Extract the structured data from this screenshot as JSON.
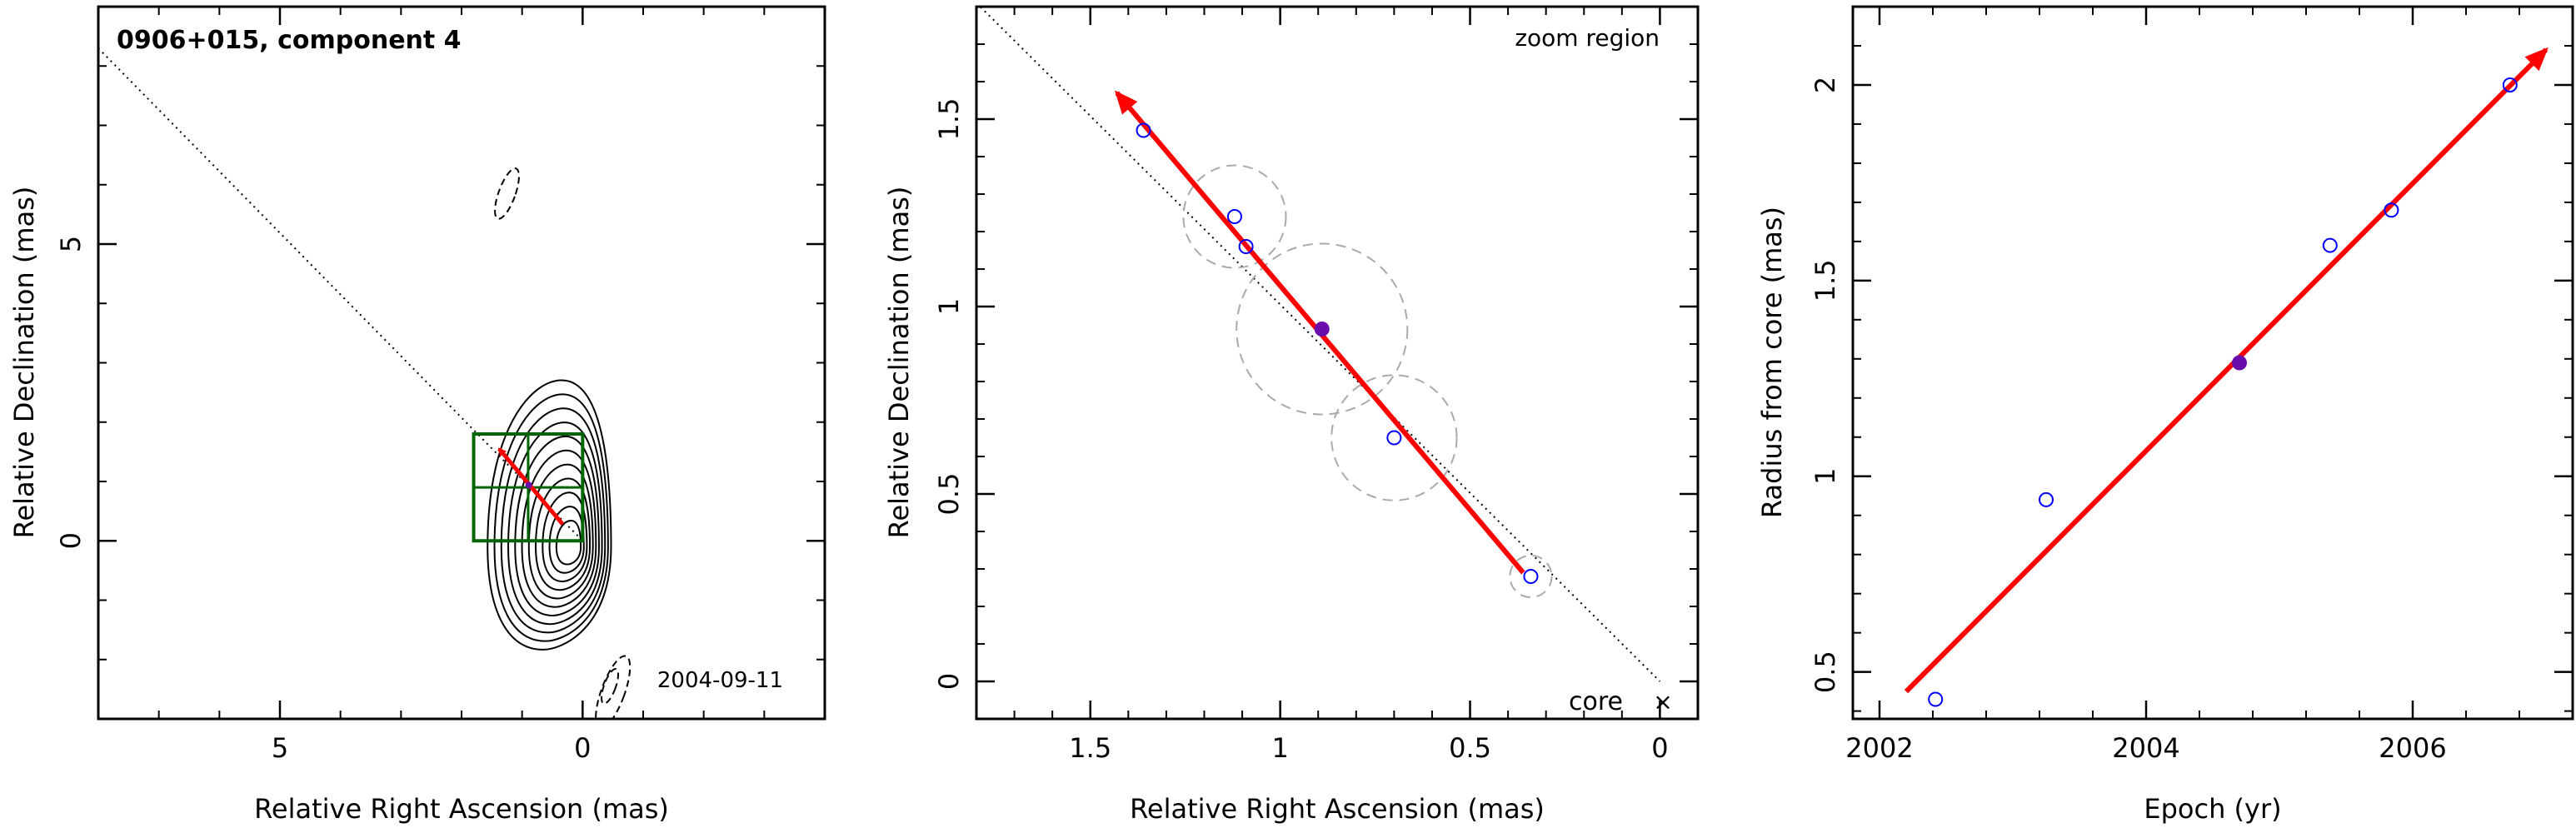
{
  "chart_data": [
    {
      "type": "scatter",
      "panel": "image",
      "title": "0906+015, component 4",
      "date_label": "2004-09-11",
      "xlabel": "Relative Right Ascension (mas)",
      "ylabel": "Relative Declination (mas)",
      "xlim": [
        8,
        -4
      ],
      "ylim": [
        -3,
        9
      ],
      "x_reversed": true,
      "xticks": [
        5,
        0
      ],
      "yticks": [
        0,
        5
      ],
      "xtick_labels": [
        "5",
        "0"
      ],
      "ytick_labels": [
        "0",
        "5"
      ],
      "grid": false,
      "jet_axis_line": {
        "from": [
          8,
          8.3
        ],
        "to": [
          0,
          0
        ]
      },
      "zoom_box": {
        "x": [
          0,
          1.8
        ],
        "y": [
          0,
          1.8
        ]
      },
      "motion_vector": {
        "from": [
          0.33,
          0.28
        ],
        "to": [
          1.38,
          1.55
        ]
      },
      "component_position": [
        0.89,
        0.94
      ],
      "colors": {
        "contours": "#000000",
        "zoom_box": "#006400",
        "vector": "#ff0000",
        "axis_line": "#000000"
      }
    },
    {
      "type": "scatter",
      "panel": "zoom",
      "corner_label": "zoom region",
      "core_label": "core",
      "core_marker": "×",
      "xlabel": "Relative Right Ascension (mas)",
      "ylabel": "Relative Declination (mas)",
      "xlim": [
        1.8,
        -0.1
      ],
      "ylim": [
        -0.1,
        1.8
      ],
      "x_reversed": true,
      "xticks": [
        1.5,
        1,
        0.5,
        0
      ],
      "yticks": [
        0,
        0.5,
        1,
        1.5
      ],
      "xtick_labels": [
        "1.5",
        "1",
        "0.5",
        "0"
      ],
      "ytick_labels": [
        "0",
        "0.5",
        "1",
        "1.5"
      ],
      "grid": false,
      "points": [
        {
          "x": 1.36,
          "y": 1.47,
          "filled": false,
          "size": 0
        },
        {
          "x": 1.12,
          "y": 1.24,
          "filled": false,
          "size": 0.135
        },
        {
          "x": 1.09,
          "y": 1.16,
          "filled": false,
          "size": 0
        },
        {
          "x": 0.89,
          "y": 0.94,
          "filled": true,
          "size": 0.225
        },
        {
          "x": 0.7,
          "y": 0.65,
          "filled": false,
          "size": 0.165
        },
        {
          "x": 0.34,
          "y": 0.28,
          "filled": false,
          "size": 0.055
        }
      ],
      "motion_vector": {
        "from": [
          0.36,
          0.29
        ],
        "to": [
          1.43,
          1.57
        ]
      },
      "axis_line": {
        "from": [
          1.8,
          1.81
        ],
        "to": [
          0,
          0
        ]
      },
      "colors": {
        "points": "#0000ff",
        "filled_point": "#6a0dad",
        "circles": "#aaaaaa",
        "vector": "#ff0000"
      }
    },
    {
      "type": "scatter",
      "panel": "radius",
      "xlabel": "Epoch (yr)",
      "ylabel": "Radius from core (mas)",
      "xlim": [
        2001.8,
        2007.2
      ],
      "ylim": [
        0.38,
        2.2
      ],
      "xticks": [
        2002,
        2004,
        2006
      ],
      "yticks": [
        0.5,
        1,
        1.5,
        2
      ],
      "xtick_labels": [
        "2002",
        "2004",
        "2006"
      ],
      "ytick_labels": [
        "0.5",
        "1",
        "1.5",
        "2"
      ],
      "grid": false,
      "points": [
        {
          "x": 2002.42,
          "y": 0.43,
          "filled": false
        },
        {
          "x": 2003.25,
          "y": 0.94,
          "filled": false
        },
        {
          "x": 2004.7,
          "y": 1.29,
          "filled": true
        },
        {
          "x": 2005.38,
          "y": 1.59,
          "filled": false
        },
        {
          "x": 2005.84,
          "y": 1.68,
          "filled": false
        },
        {
          "x": 2006.73,
          "y": 2.0,
          "filled": false
        }
      ],
      "fit_line": {
        "from": [
          2002.2,
          0.45
        ],
        "to": [
          2007.0,
          2.09
        ]
      },
      "colors": {
        "points": "#0000ff",
        "filled_point": "#6a0dad",
        "fit": "#ff0000"
      }
    }
  ]
}
